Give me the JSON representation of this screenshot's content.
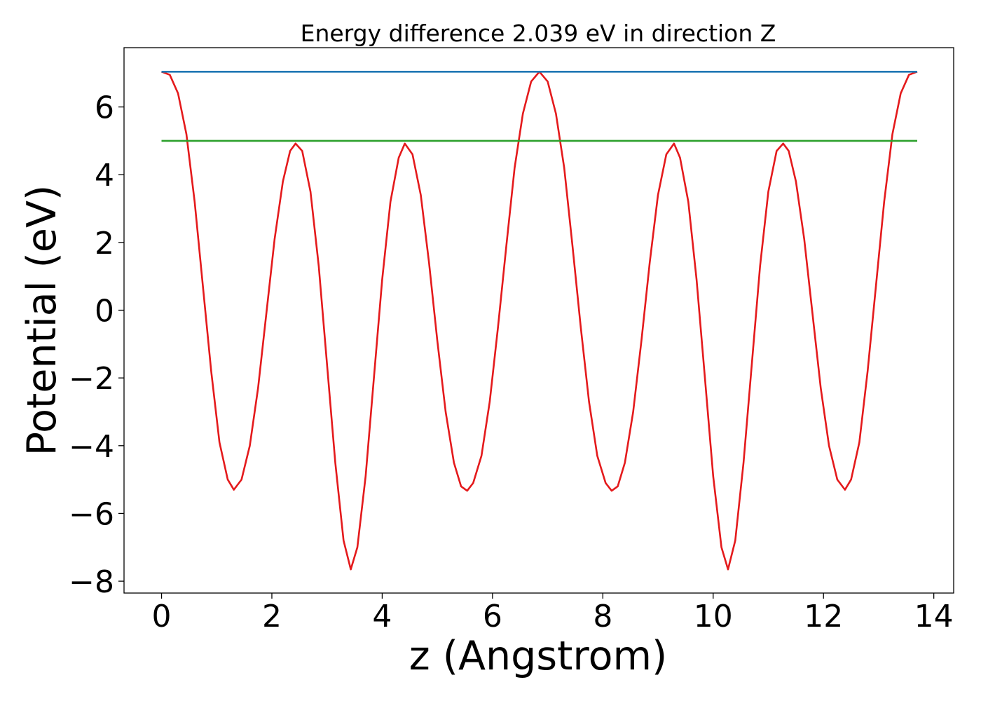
{
  "chart_data": {
    "type": "line",
    "title": "Energy difference 2.039 eV in direction Z",
    "xlabel": "z (Angstrom)",
    "ylabel": "Potential (eV)",
    "xlim": [
      -0.68,
      14.36
    ],
    "ylim": [
      -8.35,
      7.75
    ],
    "x_ticks": [
      0,
      2,
      4,
      6,
      8,
      10,
      12,
      14
    ],
    "x_tick_labels": [
      "0",
      "2",
      "4",
      "6",
      "8",
      "10",
      "12",
      "14"
    ],
    "y_ticks": [
      -8,
      -6,
      -4,
      -2,
      0,
      2,
      4,
      6
    ],
    "y_tick_labels": [
      "−8",
      "−6",
      "−4",
      "−2",
      "0",
      "2",
      "4",
      "6"
    ],
    "grid": false,
    "legend": "none",
    "series": [
      {
        "color": "#e41a1c",
        "style": "solid",
        "points": [
          [
            0.0,
            7.04
          ],
          [
            0.15,
            6.95
          ],
          [
            0.3,
            6.4
          ],
          [
            0.45,
            5.2
          ],
          [
            0.6,
            3.2
          ],
          [
            0.75,
            0.7
          ],
          [
            0.9,
            -1.8
          ],
          [
            1.05,
            -3.9
          ],
          [
            1.2,
            -5.0
          ],
          [
            1.31,
            -5.3
          ],
          [
            1.45,
            -5.0
          ],
          [
            1.6,
            -4.0
          ],
          [
            1.75,
            -2.3
          ],
          [
            1.9,
            -0.1
          ],
          [
            2.05,
            2.1
          ],
          [
            2.2,
            3.8
          ],
          [
            2.33,
            4.7
          ],
          [
            2.43,
            4.92
          ],
          [
            2.55,
            4.7
          ],
          [
            2.7,
            3.5
          ],
          [
            2.85,
            1.3
          ],
          [
            3.0,
            -1.6
          ],
          [
            3.15,
            -4.5
          ],
          [
            3.3,
            -6.8
          ],
          [
            3.43,
            -7.65
          ],
          [
            3.55,
            -7.0
          ],
          [
            3.7,
            -4.9
          ],
          [
            3.85,
            -2.0
          ],
          [
            4.0,
            0.9
          ],
          [
            4.15,
            3.2
          ],
          [
            4.3,
            4.5
          ],
          [
            4.41,
            4.92
          ],
          [
            4.55,
            4.6
          ],
          [
            4.7,
            3.4
          ],
          [
            4.85,
            1.4
          ],
          [
            5.0,
            -0.9
          ],
          [
            5.15,
            -3.0
          ],
          [
            5.3,
            -4.5
          ],
          [
            5.43,
            -5.2
          ],
          [
            5.54,
            -5.33
          ],
          [
            5.65,
            -5.1
          ],
          [
            5.8,
            -4.3
          ],
          [
            5.95,
            -2.7
          ],
          [
            6.1,
            -0.5
          ],
          [
            6.25,
            1.9
          ],
          [
            6.4,
            4.2
          ],
          [
            6.55,
            5.8
          ],
          [
            6.7,
            6.75
          ],
          [
            6.85,
            7.04
          ],
          [
            7.0,
            6.75
          ],
          [
            7.15,
            5.8
          ],
          [
            7.3,
            4.2
          ],
          [
            7.45,
            1.9
          ],
          [
            7.6,
            -0.5
          ],
          [
            7.75,
            -2.7
          ],
          [
            7.9,
            -4.3
          ],
          [
            8.05,
            -5.1
          ],
          [
            8.16,
            -5.33
          ],
          [
            8.27,
            -5.2
          ],
          [
            8.4,
            -4.5
          ],
          [
            8.55,
            -3.0
          ],
          [
            8.7,
            -0.9
          ],
          [
            8.85,
            1.4
          ],
          [
            9.0,
            3.4
          ],
          [
            9.15,
            4.6
          ],
          [
            9.29,
            4.92
          ],
          [
            9.4,
            4.5
          ],
          [
            9.55,
            3.2
          ],
          [
            9.7,
            0.9
          ],
          [
            9.85,
            -2.0
          ],
          [
            10.0,
            -4.9
          ],
          [
            10.15,
            -7.0
          ],
          [
            10.27,
            -7.65
          ],
          [
            10.4,
            -6.8
          ],
          [
            10.55,
            -4.5
          ],
          [
            10.7,
            -1.6
          ],
          [
            10.85,
            1.3
          ],
          [
            11.0,
            3.5
          ],
          [
            11.15,
            4.7
          ],
          [
            11.27,
            4.92
          ],
          [
            11.37,
            4.7
          ],
          [
            11.5,
            3.8
          ],
          [
            11.65,
            2.1
          ],
          [
            11.8,
            -0.1
          ],
          [
            11.95,
            -2.3
          ],
          [
            12.1,
            -4.0
          ],
          [
            12.25,
            -5.0
          ],
          [
            12.39,
            -5.3
          ],
          [
            12.5,
            -5.0
          ],
          [
            12.65,
            -3.9
          ],
          [
            12.8,
            -1.8
          ],
          [
            12.95,
            0.7
          ],
          [
            13.1,
            3.2
          ],
          [
            13.25,
            5.2
          ],
          [
            13.4,
            6.4
          ],
          [
            13.55,
            6.95
          ],
          [
            13.7,
            7.04
          ]
        ]
      },
      {
        "color": "#1f77b4",
        "style": "solid",
        "points": [
          [
            0.0,
            7.04
          ],
          [
            13.7,
            7.04
          ]
        ]
      },
      {
        "color": "#2ca02c",
        "style": "solid",
        "points": [
          [
            0.0,
            5.0
          ],
          [
            13.7,
            5.0
          ]
        ]
      }
    ]
  }
}
